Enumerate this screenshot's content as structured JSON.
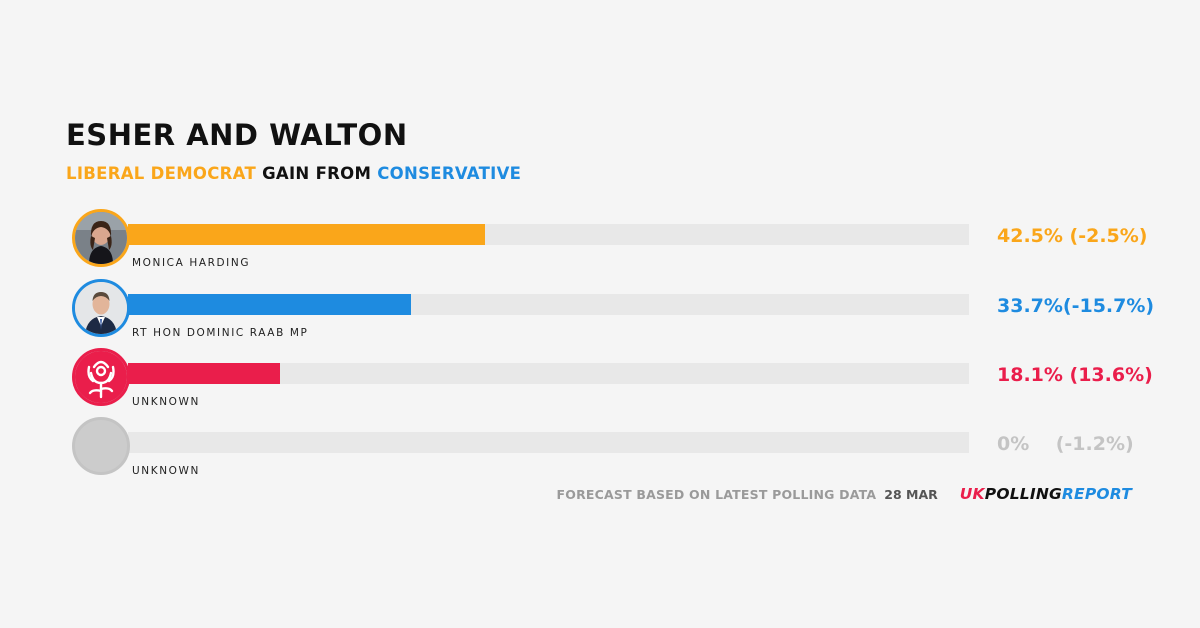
{
  "title": "ESHER AND WALTON",
  "subtitle": {
    "winner": "LIBERAL DEMOCRAT",
    "middle": "GAIN FROM",
    "loser": "CONSERVATIVE"
  },
  "colors": {
    "libdem": "#faa61a",
    "conservative": "#1e8be0",
    "labour": "#ea1e4b",
    "other": "#c4c4c4"
  },
  "chart_data": {
    "type": "bar",
    "orientation": "horizontal",
    "xlim": [
      0,
      100
    ],
    "categories": [
      "MONICA HARDING",
      "RT HON DOMINIC RAAB MP",
      "UNKNOWN",
      "UNKNOWN"
    ],
    "values": [
      42.5,
      33.7,
      18.1,
      0
    ],
    "changes": [
      -2.5,
      -15.7,
      13.6,
      -1.2
    ],
    "labels": [
      "42.5% (-2.5%)",
      "33.7%(-15.7%)",
      "18.1% (13.6%)",
      "0%    (-1.2%)"
    ],
    "colors": [
      "#faa61a",
      "#1e8be0",
      "#ea1e4b",
      "#c4c4c4"
    ],
    "avatars": [
      "person-photo-icon",
      "person-photo-icon",
      "labour-rose-icon",
      "placeholder-circle-icon"
    ]
  },
  "footer": {
    "text": "FORECAST BASED ON LATEST POLLING DATA",
    "date": "28 MAR",
    "logo": {
      "part1": "UK",
      "part2": "POLLING",
      "part3": "REPORT"
    }
  }
}
